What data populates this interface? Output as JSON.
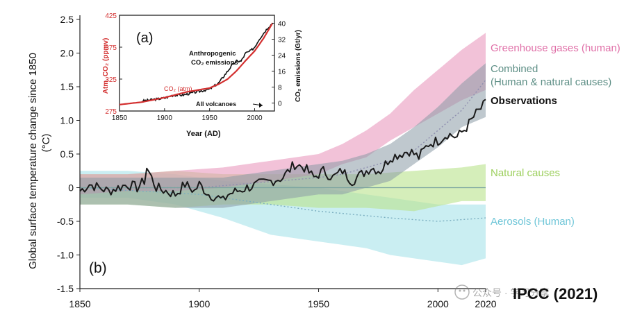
{
  "chart_data": [
    {
      "panel": "(b)",
      "type": "area",
      "ylabel": "Global surface temperature change since 1850",
      "ylabel_unit": "(°C)",
      "xlim": [
        1850,
        2020
      ],
      "ylim": [
        -1.5,
        2.5
      ],
      "x_ticks": [
        "1850",
        "1900",
        "1950",
        "2000",
        "2020"
      ],
      "y_ticks": [
        "2.5",
        "2.0",
        "1.5",
        "1.0",
        "0.5",
        "0",
        "-0.5",
        "-1.0",
        "-1.5"
      ],
      "grid": false,
      "series": [
        {
          "name": "Greenhouse gases (human)",
          "color": "#e78fb8",
          "label_color": "#e070a8",
          "band": {
            "x": [
              1850,
              1870,
              1890,
              1910,
              1930,
              1950,
              1960,
              1970,
              1980,
              1990,
              2000,
              2010,
              2020
            ],
            "lower": [
              -0.1,
              -0.05,
              -0.05,
              0.0,
              0.1,
              0.2,
              0.35,
              0.45,
              0.7,
              0.9,
              1.1,
              1.3,
              1.45
            ],
            "upper": [
              0.2,
              0.2,
              0.25,
              0.3,
              0.4,
              0.5,
              0.65,
              0.85,
              1.1,
              1.45,
              1.75,
              2.05,
              2.3
            ]
          }
        },
        {
          "name": "Combined\n(Human & natural causes)",
          "color": "#8a9aa5",
          "label_color": "#5e8f86",
          "band": {
            "x": [
              1850,
              1870,
              1890,
              1910,
              1930,
              1950,
              1960,
              1970,
              1980,
              1990,
              2000,
              2010,
              2020
            ],
            "lower": [
              -0.25,
              -0.25,
              -0.3,
              -0.3,
              -0.2,
              -0.1,
              -0.1,
              0.0,
              0.1,
              0.35,
              0.6,
              0.9,
              1.05
            ],
            "upper": [
              0.15,
              0.15,
              0.15,
              0.15,
              0.25,
              0.35,
              0.4,
              0.5,
              0.65,
              0.9,
              1.2,
              1.55,
              1.85
            ]
          },
          "mean": {
            "x": [
              1850,
              1900,
              1950,
              1960,
              1970,
              1980,
              1990,
              2000,
              2010,
              2020
            ],
            "y": [
              0.0,
              0.0,
              0.15,
              0.2,
              0.3,
              0.4,
              0.55,
              0.85,
              1.15,
              1.6
            ]
          }
        },
        {
          "name": "Observations",
          "color": "#1a1a1a",
          "label_color": "#111111",
          "x": [
            1850,
            1854,
            1858,
            1862,
            1866,
            1870,
            1874,
            1877,
            1878,
            1882,
            1886,
            1890,
            1894,
            1898,
            1900,
            1904,
            1908,
            1910,
            1912,
            1916,
            1920,
            1925,
            1930,
            1935,
            1940,
            1944,
            1948,
            1952,
            1956,
            1960,
            1964,
            1968,
            1972,
            1976,
            1980,
            1984,
            1988,
            1992,
            1996,
            2000,
            2004,
            2008,
            2012,
            2016,
            2020
          ],
          "y": [
            -0.05,
            0.05,
            0.0,
            -0.05,
            0.0,
            0.05,
            0.0,
            0.1,
            0.3,
            0.0,
            -0.05,
            -0.1,
            0.05,
            -0.05,
            0.05,
            -0.1,
            -0.15,
            -0.2,
            -0.1,
            -0.05,
            0.0,
            0.05,
            0.1,
            0.15,
            0.35,
            0.3,
            0.15,
            0.25,
            0.15,
            0.25,
            0.1,
            0.2,
            0.3,
            0.25,
            0.45,
            0.5,
            0.55,
            0.45,
            0.65,
            0.7,
            0.8,
            0.75,
            0.9,
            1.1,
            1.25
          ]
        },
        {
          "name": "Natural causes",
          "color": "#b9e38c",
          "label_color": "#9ccf5d",
          "band": {
            "x": [
              1850,
              1870,
              1890,
              1910,
              1930,
              1950,
              1970,
              1990,
              2010,
              2020
            ],
            "lower": [
              -0.25,
              -0.25,
              -0.3,
              -0.25,
              -0.25,
              -0.3,
              -0.3,
              -0.35,
              -0.2,
              -0.2
            ],
            "upper": [
              0.2,
              0.2,
              0.25,
              0.2,
              0.2,
              0.2,
              0.2,
              0.25,
              0.3,
              0.35
            ]
          }
        },
        {
          "name": "Aerosols (Human)",
          "color": "#a6e2ea",
          "label_color": "#6fc6d8",
          "band": {
            "x": [
              1850,
              1870,
              1890,
              1910,
              1930,
              1950,
              1960,
              1970,
              1980,
              1990,
              2000,
              2010,
              2020
            ],
            "lower": [
              -0.15,
              -0.15,
              -0.25,
              -0.45,
              -0.7,
              -0.8,
              -0.85,
              -0.9,
              -1.0,
              -1.05,
              -1.1,
              -1.15,
              -1.05
            ],
            "upper": [
              0.25,
              0.25,
              0.2,
              0.1,
              0.05,
              0.0,
              -0.05,
              -0.1,
              -0.15,
              -0.2,
              -0.25,
              -0.25,
              -0.25
            ]
          },
          "mean": {
            "x": [
              1850,
              1900,
              1950,
              1980,
              2000,
              2020
            ],
            "y": [
              0.0,
              -0.1,
              -0.35,
              -0.45,
              -0.5,
              -0.45
            ]
          }
        }
      ]
    },
    {
      "panel": "(a)",
      "type": "line",
      "xlabel": "Year (AD)",
      "ylabel_left": "Atm. CO2 (ppmv)",
      "ylabel_right": "CO2 emissions (Gt/yr)",
      "xlim": [
        1850,
        2022
      ],
      "ylim_left": [
        275,
        425
      ],
      "ylim_right": [
        -4,
        44
      ],
      "x_ticks": [
        "1850",
        "1900",
        "1950",
        "2000"
      ],
      "y_ticks_left": [
        "425",
        "375",
        "325",
        "275"
      ],
      "y_ticks_right": [
        "40",
        "32",
        "24",
        "16",
        "8",
        "0"
      ],
      "series": [
        {
          "name": "CO2 (atm)",
          "color": "#d32f2f",
          "axis": "left",
          "x": [
            1850,
            1875,
            1900,
            1925,
            1950,
            1960,
            1970,
            1980,
            1990,
            2000,
            2010,
            2020
          ],
          "y": [
            285,
            289,
            296,
            305,
            311,
            317,
            325,
            338,
            354,
            369,
            389,
            413
          ]
        },
        {
          "name": "Anthropogenic CO2 emissions",
          "color": "#111111",
          "axis": "right",
          "x": [
            1875,
            1900,
            1910,
            1920,
            1930,
            1940,
            1950,
            1960,
            1970,
            1975,
            1980,
            1985,
            1990,
            1995,
            2000,
            2005,
            2010,
            2015,
            2020
          ],
          "y": [
            1,
            2.5,
            4,
            4,
            5,
            6,
            7,
            10,
            16,
            19,
            21,
            21,
            25,
            26,
            28,
            32,
            35,
            38,
            40
          ]
        }
      ],
      "annotations": [
        "(a)",
        "Anthropogenic",
        "CO₂ emissions",
        "CO₂ (atm)",
        "All volcanoes"
      ]
    }
  ],
  "labels": {
    "panel_b": "(b)",
    "ylabel_main": "Global surface temperature change since 1850",
    "ylabel_unit": "(°C)",
    "source": "IPCC (2021)",
    "inset_ylabel_left": "Atm. CO₂ (ppmv)",
    "inset_ylabel_right": "CO₂ emissions (Gt/yr)"
  },
  "watermark": "公众号 · 学习分享"
}
